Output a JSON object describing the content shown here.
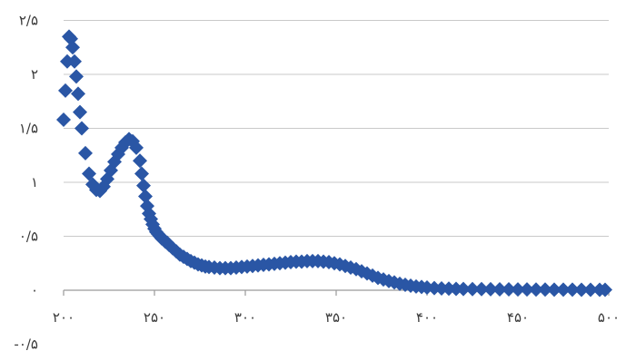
{
  "chart_data": {
    "type": "scatter",
    "marker": "diamond",
    "marker_color": "#2a56a5",
    "grid": true,
    "xlim": [
      200,
      500
    ],
    "ylim": [
      -0.5,
      2.5
    ],
    "x_ticks": [
      {
        "value": 200,
        "label": "۲۰۰"
      },
      {
        "value": 250,
        "label": "۲۵۰"
      },
      {
        "value": 300,
        "label": "۳۰۰"
      },
      {
        "value": 350,
        "label": "۳۵۰"
      },
      {
        "value": 400,
        "label": "۴۰۰"
      },
      {
        "value": 450,
        "label": "۴۵۰"
      },
      {
        "value": 500,
        "label": "۵۰۰"
      }
    ],
    "y_ticks": [
      {
        "value": -0.5,
        "label": "-۰/۵"
      },
      {
        "value": 0,
        "label": "۰"
      },
      {
        "value": 0.5,
        "label": "۰/۵"
      },
      {
        "value": 1,
        "label": "۱"
      },
      {
        "value": 1.5,
        "label": "۱/۵"
      },
      {
        "value": 2,
        "label": "۲"
      },
      {
        "value": 2.5,
        "label": "۲/۵"
      }
    ],
    "series": [
      {
        "color": "#2a56a5",
        "x": [
          200,
          201,
          202,
          203,
          204,
          205,
          206,
          207,
          208,
          209,
          210,
          212,
          214,
          216,
          218,
          220,
          222,
          224,
          226,
          228,
          230,
          232,
          234,
          236,
          238,
          240,
          242,
          243,
          244,
          245,
          246,
          247,
          248,
          249,
          250,
          251,
          252,
          253,
          254,
          255,
          256,
          257,
          258,
          260,
          262,
          264,
          266,
          268,
          270,
          272,
          274,
          276,
          278,
          280,
          283,
          286,
          289,
          292,
          295,
          298,
          301,
          304,
          307,
          310,
          313,
          316,
          319,
          322,
          325,
          328,
          331,
          334,
          337,
          340,
          343,
          346,
          349,
          352,
          355,
          358,
          361,
          364,
          367,
          370,
          373,
          376,
          379,
          382,
          385,
          388,
          391,
          394,
          397,
          400,
          404,
          408,
          412,
          416,
          420,
          425,
          430,
          435,
          440,
          445,
          450,
          455,
          460,
          465,
          470,
          475,
          480,
          485,
          490,
          495,
          498
        ],
        "y": [
          1.58,
          1.85,
          2.12,
          2.35,
          2.33,
          2.25,
          2.12,
          1.98,
          1.82,
          1.65,
          1.5,
          1.27,
          1.08,
          0.98,
          0.93,
          0.92,
          0.96,
          1.03,
          1.11,
          1.19,
          1.26,
          1.32,
          1.37,
          1.4,
          1.38,
          1.32,
          1.2,
          1.08,
          0.97,
          0.87,
          0.78,
          0.71,
          0.66,
          0.61,
          0.57,
          0.54,
          0.52,
          0.5,
          0.48,
          0.47,
          0.45,
          0.44,
          0.42,
          0.39,
          0.36,
          0.33,
          0.31,
          0.29,
          0.27,
          0.255,
          0.24,
          0.23,
          0.22,
          0.215,
          0.21,
          0.205,
          0.205,
          0.205,
          0.21,
          0.215,
          0.22,
          0.225,
          0.23,
          0.235,
          0.24,
          0.245,
          0.25,
          0.255,
          0.26,
          0.265,
          0.265,
          0.27,
          0.27,
          0.27,
          0.265,
          0.26,
          0.25,
          0.24,
          0.225,
          0.21,
          0.195,
          0.175,
          0.155,
          0.135,
          0.115,
          0.1,
          0.085,
          0.072,
          0.06,
          0.05,
          0.042,
          0.035,
          0.03,
          0.025,
          0.02,
          0.017,
          0.015,
          0.013,
          0.012,
          0.011,
          0.01,
          0.009,
          0.008,
          0.008,
          0.007,
          0.007,
          0.006,
          0.006,
          0.005,
          0.005,
          0.005,
          0.004,
          0.004,
          0.004,
          0.004
        ]
      }
    ]
  }
}
